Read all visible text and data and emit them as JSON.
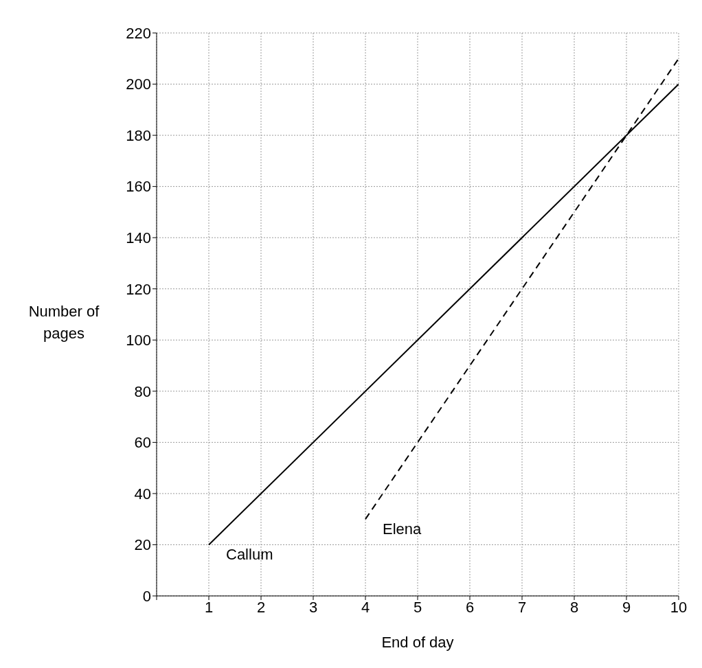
{
  "chart_data": {
    "type": "line",
    "xlabel": "End of day",
    "ylabel": "Number of pages",
    "xlim": [
      0,
      10
    ],
    "ylim": [
      0,
      220
    ],
    "xticks": [
      {
        "value": 0,
        "label": null
      },
      1,
      2,
      3,
      4,
      5,
      6,
      7,
      8,
      9,
      10
    ],
    "yticks": [
      0,
      20,
      40,
      60,
      80,
      100,
      120,
      140,
      160,
      180,
      200,
      220
    ],
    "grid": true,
    "legend": false,
    "marker": "none",
    "series": [
      {
        "name": "Callum",
        "color": "#000000",
        "line_style": "solid",
        "x": [
          1,
          10
        ],
        "values": [
          20,
          200
        ]
      },
      {
        "name": "Elena",
        "color": "#000000",
        "line_style": "dashed",
        "x": [
          4,
          10
        ],
        "values": [
          30,
          210
        ]
      }
    ]
  }
}
